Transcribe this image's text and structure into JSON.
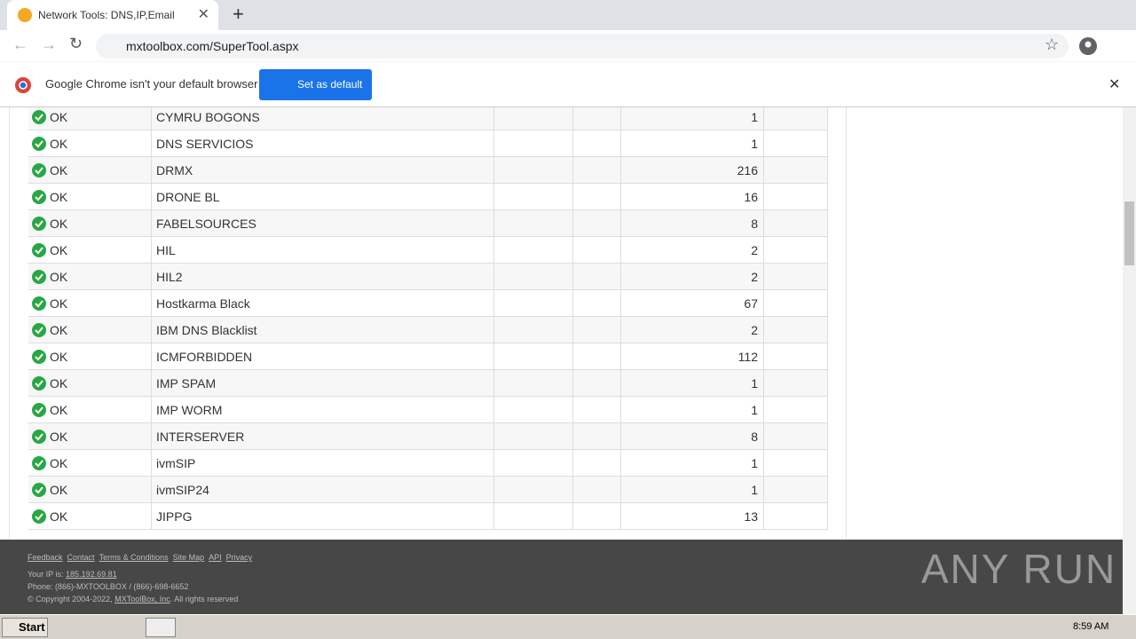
{
  "browser": {
    "tab_title": "Network Tools: DNS,IP,Email",
    "url": "mxtoolbox.com/SuperTool.aspx",
    "infobar_text": "Google Chrome isn't your default browser",
    "infobar_button": "Set as default"
  },
  "table": {
    "rows": [
      [
        "OK",
        "CYMRU BOGONS",
        1
      ],
      [
        "OK",
        "DNS SERVICIOS",
        1
      ],
      [
        "OK",
        "DRMX",
        216
      ],
      [
        "OK",
        "DRONE BL",
        16
      ],
      [
        "OK",
        "FABELSOURCES",
        8
      ],
      [
        "OK",
        "HIL",
        2
      ],
      [
        "OK",
        "HIL2",
        2
      ],
      [
        "OK",
        "Hostkarma Black",
        67
      ],
      [
        "OK",
        "IBM DNS Blacklist",
        2
      ],
      [
        "OK",
        "ICMFORBIDDEN",
        112
      ],
      [
        "OK",
        "IMP SPAM",
        1
      ],
      [
        "OK",
        "IMP WORM",
        1
      ],
      [
        "OK",
        "INTERSERVER",
        8
      ],
      [
        "OK",
        "ivmSIP",
        1
      ],
      [
        "OK",
        "ivmSIP24",
        1
      ],
      [
        "OK",
        "JIPPG",
        13
      ]
    ]
  },
  "footer": {
    "links": [
      "Feedback",
      "Contact",
      "Terms & Conditions",
      "Site Map",
      "API",
      "Privacy"
    ],
    "ip_label": "Your IP is:",
    "ip": "185.192.69.81",
    "phone": "Phone: (866)-MXTOOLBOX / (866)-698-6652",
    "copyright": "© Copyright 2004-2022,",
    "company": "MXToolBox, Inc",
    "rights": ". All rights reserved",
    "watermark": "ANY RUN"
  },
  "taskbar": {
    "start": "Start",
    "time": "8:59 AM"
  }
}
